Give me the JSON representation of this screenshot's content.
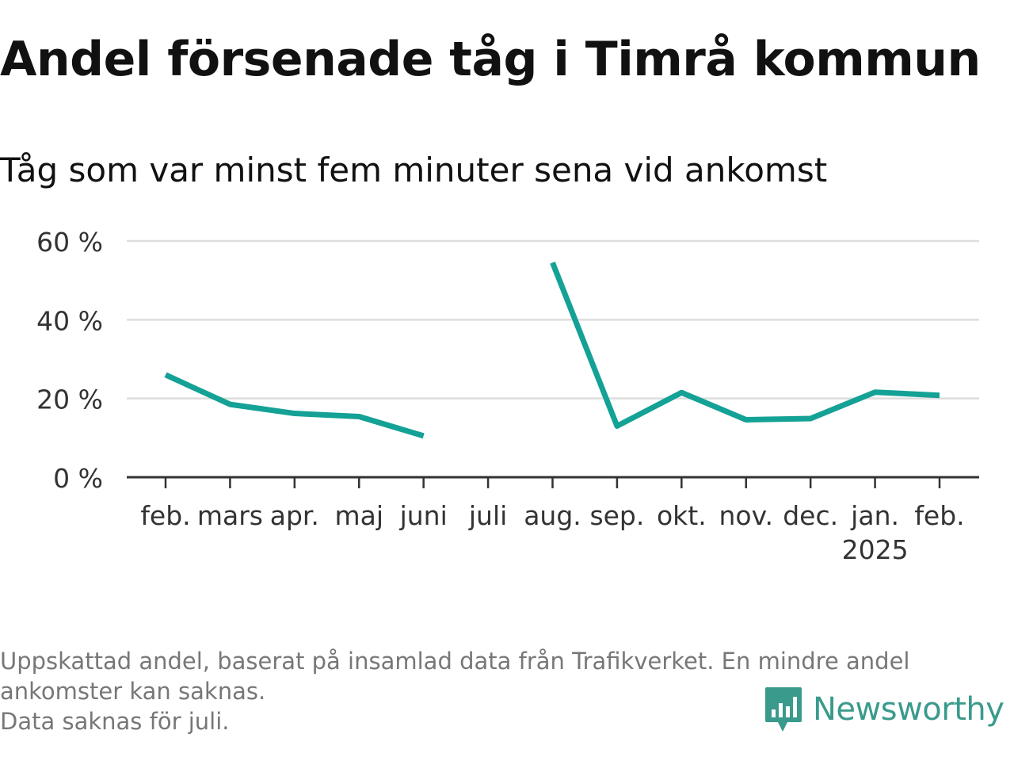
{
  "title": "Andel försenade tåg i Timrå kommun",
  "subtitle": "Tåg som var minst fem minuter sena vid ankomst",
  "chart_data": {
    "type": "line",
    "categories": [
      "feb.",
      "mars",
      "apr.",
      "maj",
      "juni",
      "juli",
      "aug.",
      "sep.",
      "okt.",
      "nov.",
      "dec.",
      "jan.",
      "feb."
    ],
    "year_label": {
      "category_index": 11,
      "text": "2025"
    },
    "series": [
      {
        "values": [
          26,
          18.5,
          16.2,
          15.4,
          10.5,
          null,
          54.5,
          13,
          21.5,
          14.6,
          14.9,
          21.6,
          20.8
        ]
      }
    ],
    "ylim": [
      0,
      60
    ],
    "yticks": [
      0,
      20,
      40,
      60
    ],
    "ytick_labels": [
      "0 %",
      "20 %",
      "40 %",
      "60 %"
    ],
    "grid": true,
    "line_color": "#14a196",
    "grid_color": "#dddddd",
    "axis_color": "#333333"
  },
  "footnote": {
    "line1": "Uppskattad andel, baserat på insamlad data från Trafikverket. En mindre andel",
    "line2": "ankomster kan saknas.",
    "line3": "Data saknas för juli."
  },
  "brand": {
    "name": "Newsworthy",
    "icon": "newsworthy-logo-icon",
    "color": "#3a9a8c"
  }
}
